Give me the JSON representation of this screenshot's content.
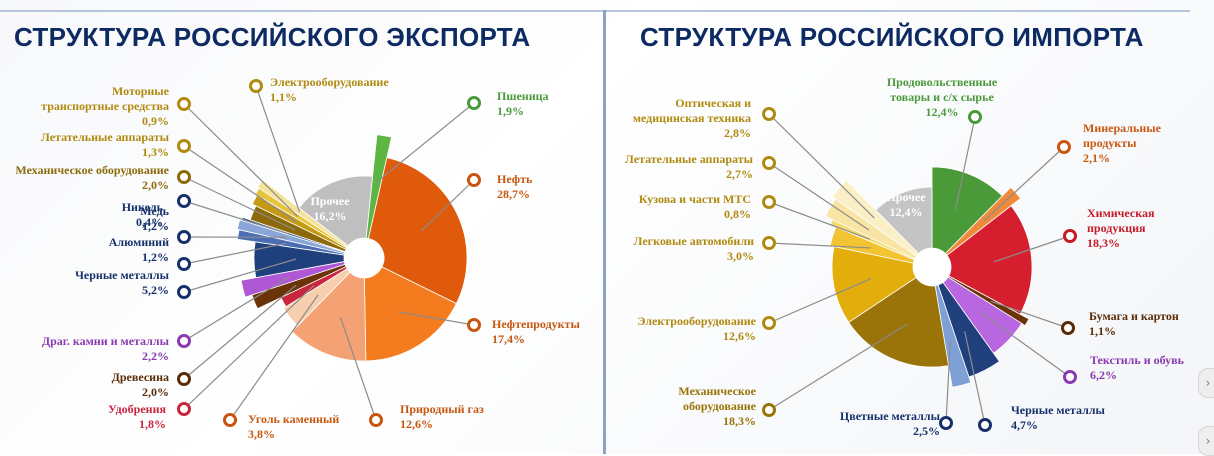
{
  "titles": {
    "export": "СТРУКТУРА РОССИЙСКОГО ЭКСПОРТА",
    "import": "СТРУКТУРА РОССИЙСКОГО ИМПОРТА"
  },
  "chart_data": [
    {
      "type": "pie",
      "title": "СТРУКТУРА РОССИЙСКОГО ЭКСПОРТА",
      "slices": [
        {
          "label": [
            "Пшеница"
          ],
          "value_text": "1,9%",
          "value": 1.9,
          "color": "#5db543"
        },
        {
          "label": [
            "Нефть"
          ],
          "value_text": "28,7%",
          "value": 28.7,
          "color": "#e05a0c"
        },
        {
          "label": [
            "Нефтепродукты"
          ],
          "value_text": "17,4%",
          "value": 17.4,
          "color": "#f47b1e"
        },
        {
          "label": [
            "Природный газ"
          ],
          "value_text": "12,6%",
          "value": 12.6,
          "color": "#f4a273"
        },
        {
          "label": [
            "Уголь каменный"
          ],
          "value_text": "3,8%",
          "value": 3.8,
          "color": "#f8cfae"
        },
        {
          "label": [
            "Удобрения"
          ],
          "value_text": "1,8%",
          "value": 1.8,
          "color": "#c9253c"
        },
        {
          "label": [
            "Древесина"
          ],
          "value_text": "2,0%",
          "value": 2.0,
          "color": "#6a3408"
        },
        {
          "label": [
            "Драг. камни и металлы"
          ],
          "value_text": "2,2%",
          "value": 2.2,
          "color": "#b057d6"
        },
        {
          "label": [
            "Черные металлы"
          ],
          "value_text": "5,2%",
          "value": 5.2,
          "color": "#1f3f7d"
        },
        {
          "label": [
            "Алюминий"
          ],
          "value_text": "1,2%",
          "value": 1.2,
          "color": "#4a6db4"
        },
        {
          "label": [
            "Медь"
          ],
          "value_text": "1,2%",
          "value": 1.2,
          "color": "#8aa6d8"
        },
        {
          "label": [
            "Никель"
          ],
          "value_text": "0,4%",
          "value": 0.4,
          "color": "#2b4d8f"
        },
        {
          "label": [
            "Механическое оборудование"
          ],
          "value_text": "2,0%",
          "value": 2.0,
          "color": "#8c6a0a"
        },
        {
          "label": [
            "Летательные аппараты"
          ],
          "value_text": "1,3%",
          "value": 1.3,
          "color": "#c49a12"
        },
        {
          "label": [
            "Моторные",
            "транспортные средства"
          ],
          "value_text": "0,9%",
          "value": 0.9,
          "color": "#e7c43d"
        },
        {
          "label": [
            "Электрооборудование"
          ],
          "value_text": "1,1%",
          "value": 1.1,
          "color": "#f5e39b"
        },
        {
          "label": [
            "Прочее"
          ],
          "value_text": "16,2%",
          "value": 16.2,
          "color": "#bfbfbf"
        }
      ]
    },
    {
      "type": "pie",
      "title": "СТРУКТУРА РОССИЙСКОГО ИМПОРТА",
      "slices": [
        {
          "label": [
            "Продовольственные",
            "товары и с/х сырье"
          ],
          "value_text": "12,4%",
          "value": 12.4,
          "color": "#4a9a3a"
        },
        {
          "label": [
            "Минеральные",
            "продукты"
          ],
          "value_text": "2,1%",
          "value": 2.1,
          "color": "#f08a3a"
        },
        {
          "label": [
            "Химическая",
            "продукция"
          ],
          "value_text": "18,3%",
          "value": 18.3,
          "color": "#d51f2f"
        },
        {
          "label": [
            "Бумага и картон"
          ],
          "value_text": "1,1%",
          "value": 1.1,
          "color": "#6a3408"
        },
        {
          "label": [
            "Текстиль и обувь"
          ],
          "value_text": "6,2%",
          "value": 6.2,
          "color": "#b967e0"
        },
        {
          "label": [
            "Черные металлы"
          ],
          "value_text": "4,7%",
          "value": 4.7,
          "color": "#1f3f7d"
        },
        {
          "label": [
            "Цветные металлы"
          ],
          "value_text": "2,5%",
          "value": 2.5,
          "color": "#7ea0d4"
        },
        {
          "label": [
            "Механическое",
            "оборудование"
          ],
          "value_text": "18,3%",
          "value": 18.3,
          "color": "#9a7408"
        },
        {
          "label": [
            "Электрооборудование"
          ],
          "value_text": "12,6%",
          "value": 12.6,
          "color": "#e3ae0c"
        },
        {
          "label": [
            "Легковые автомобили"
          ],
          "value_text": "3,0%",
          "value": 3.0,
          "color": "#f2c431"
        },
        {
          "label": [
            "Кузова и части МТС"
          ],
          "value_text": "0,8%",
          "value": 0.8,
          "color": "#f6da72"
        },
        {
          "label": [
            "Летательные аппараты"
          ],
          "value_text": "2,7%",
          "value": 2.7,
          "color": "#f8e4a3"
        },
        {
          "label": [
            "Оптическая и",
            "медицинская техника"
          ],
          "value_text": "2,8%",
          "value": 2.8,
          "color": "#fbefc6"
        },
        {
          "label": [
            "Прочее"
          ],
          "value_text": "12,4%",
          "value": 12.4,
          "color": "#c4c4c4"
        }
      ]
    }
  ]
}
